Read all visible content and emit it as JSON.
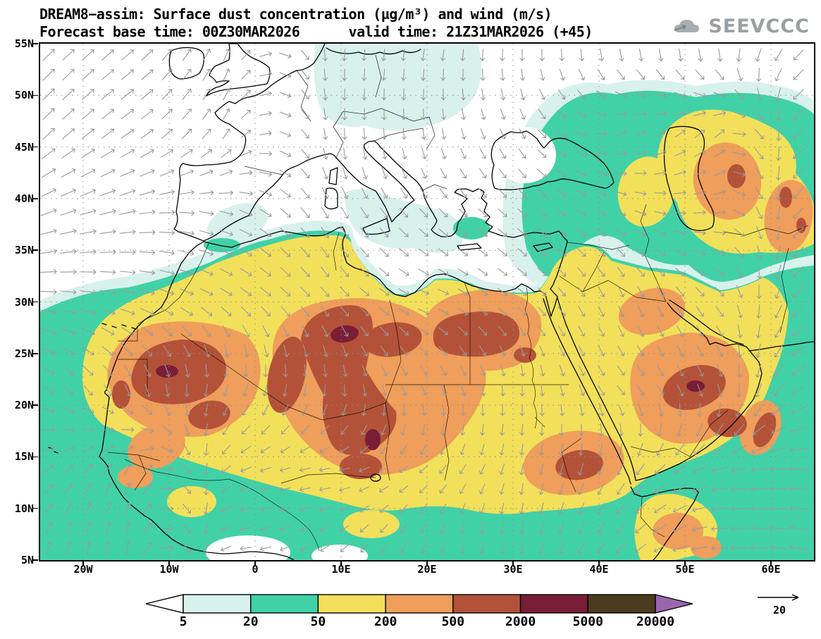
{
  "header": {
    "title": "DREAM8−assim: Surface dust concentration (µg/m³) and wind (m/s)",
    "subtitle": "Forecast base time: 00Z30MAR2026      valid time: 21Z31MAR2026 (+45)",
    "logo_text": "SEEVCCC"
  },
  "chart_data": {
    "type": "heatmap",
    "title": "DREAM8−assim: Surface dust concentration (µg/m³) and wind (m/s)",
    "variable": "Surface dust concentration",
    "units": "µg/m³",
    "wind_units": "m/s",
    "model": "DREAM8−assim",
    "forecast_base_time": "00Z30MAR2026",
    "valid_time": "21Z31MAR2026",
    "forecast_offset": "+45",
    "xlim": [
      -25,
      65
    ],
    "ylim": [
      5,
      55
    ],
    "grid": true,
    "legend_position": "bottom",
    "x_ticks": [
      {
        "label": "20W",
        "lon": -20
      },
      {
        "label": "10W",
        "lon": -10
      },
      {
        "label": "0",
        "lon": 0
      },
      {
        "label": "10E",
        "lon": 10
      },
      {
        "label": "20E",
        "lon": 20
      },
      {
        "label": "30E",
        "lon": 30
      },
      {
        "label": "40E",
        "lon": 40
      },
      {
        "label": "50E",
        "lon": 50
      },
      {
        "label": "60E",
        "lon": 60
      }
    ],
    "y_ticks": [
      {
        "label": "55N",
        "lat": 55
      },
      {
        "label": "50N",
        "lat": 50
      },
      {
        "label": "45N",
        "lat": 45
      },
      {
        "label": "40N",
        "lat": 40
      },
      {
        "label": "35N",
        "lat": 35
      },
      {
        "label": "30N",
        "lat": 30
      },
      {
        "label": "25N",
        "lat": 25
      },
      {
        "label": "20N",
        "lat": 20
      },
      {
        "label": "15N",
        "lat": 15
      },
      {
        "label": "10N",
        "lat": 10
      },
      {
        "label": "5N",
        "lat": 5
      }
    ],
    "colorbar": {
      "levels": [
        "5",
        "20",
        "50",
        "200",
        "500",
        "2000",
        "5000",
        "20000"
      ],
      "segment_colors": [
        "#ffffff",
        "#d8f1ec",
        "#41d1a7",
        "#f2e05a",
        "#ef9e5b",
        "#b35238",
        "#7a1d37",
        "#4c3b1e",
        "#9a67ae"
      ]
    },
    "wind_reference": {
      "label": "20"
    },
    "wind_color": "#9a9a9a",
    "wind_field": {
      "cols": 9,
      "rows": 7,
      "angles_deg": [
        [
          -45,
          -40,
          -70,
          95,
          100,
          95,
          95,
          100,
          140
        ],
        [
          -45,
          -35,
          -60,
          90,
          85,
          60,
          -20,
          -45,
          170
        ],
        [
          -20,
          -10,
          20,
          60,
          45,
          40,
          30,
          -10,
          160
        ],
        [
          5,
          15,
          35,
          50,
          20,
          40,
          70,
          50,
          150
        ],
        [
          35,
          70,
          110,
          90,
          60,
          90,
          50,
          70,
          160
        ],
        [
          -40,
          -70,
          160,
          175,
          140,
          100,
          120,
          170,
          185
        ],
        [
          -75,
          -85,
          180,
          140,
          100,
          95,
          135,
          180,
          190
        ]
      ],
      "magnitudes": [
        [
          0.9,
          0.85,
          0.6,
          0.5,
          0.5,
          0.5,
          0.55,
          0.6,
          0.7
        ],
        [
          0.9,
          0.8,
          0.5,
          0.45,
          0.4,
          0.45,
          0.5,
          0.55,
          0.75
        ],
        [
          0.95,
          0.9,
          0.7,
          0.6,
          0.5,
          0.5,
          0.45,
          0.5,
          0.8
        ],
        [
          0.9,
          0.8,
          0.65,
          0.55,
          0.5,
          0.45,
          0.5,
          0.55,
          0.85
        ],
        [
          0.6,
          0.6,
          0.55,
          0.5,
          0.45,
          0.45,
          0.5,
          0.6,
          0.9
        ],
        [
          0.55,
          0.6,
          0.45,
          0.4,
          0.4,
          0.45,
          0.6,
          0.85,
          1.0
        ],
        [
          0.6,
          0.65,
          0.45,
          0.4,
          0.4,
          0.45,
          0.6,
          0.9,
          1.0
        ]
      ]
    }
  }
}
